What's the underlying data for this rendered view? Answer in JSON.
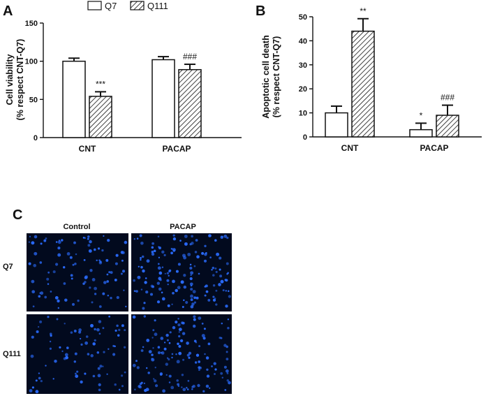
{
  "legend": {
    "items": [
      {
        "label": "Q7",
        "pattern": "open"
      },
      {
        "label": "Q111",
        "pattern": "hatched"
      }
    ]
  },
  "chart_data": [
    {
      "panel": "A",
      "type": "bar",
      "categories": [
        "CNT",
        "PACAP"
      ],
      "ylabel": "Cell viability",
      "ylabel2": "(% respect CNT-Q7)",
      "ylim": [
        0,
        150
      ],
      "yticks": [
        0,
        50,
        100,
        150
      ],
      "series": [
        {
          "name": "Q7",
          "values": [
            100,
            102
          ],
          "errors": [
            4,
            4
          ],
          "annotations": [
            "",
            ""
          ]
        },
        {
          "name": "Q111",
          "values": [
            54,
            89
          ],
          "errors": [
            6,
            7
          ],
          "annotations": [
            "***",
            "###"
          ]
        }
      ]
    },
    {
      "panel": "B",
      "type": "bar",
      "categories": [
        "CNT",
        "PACAP"
      ],
      "ylabel": "Apoptotic cell death",
      "ylabel2": "(% respect CNT-Q7)",
      "ylim": [
        0,
        50
      ],
      "yticks": [
        0,
        10,
        20,
        30,
        40,
        50
      ],
      "series": [
        {
          "name": "Q7",
          "values": [
            10,
            3
          ],
          "errors": [
            2.8,
            2.7
          ],
          "annotations": [
            "",
            "*"
          ]
        },
        {
          "name": "Q111",
          "values": [
            44,
            9
          ],
          "errors": [
            5.2,
            4.2
          ],
          "annotations": [
            "**",
            "###"
          ]
        }
      ]
    }
  ],
  "micrographs": {
    "panel": "C",
    "column_labels": [
      "Control",
      "PACAP"
    ],
    "row_labels": [
      "Q7",
      "Q111"
    ],
    "background_color": "#020a1e",
    "nucleus_color": "#2a6cff"
  }
}
